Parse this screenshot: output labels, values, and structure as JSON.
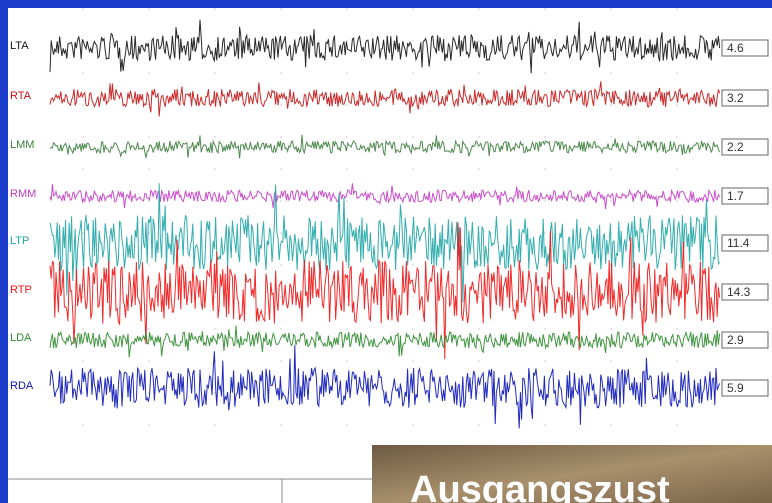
{
  "channels": [
    {
      "label": "LTA",
      "value": "4.6",
      "color": "#111111"
    },
    {
      "label": "RTA",
      "value": "3.2",
      "color": "#c41414"
    },
    {
      "label": "LMM",
      "value": "2.2",
      "color": "#3c7d3c"
    },
    {
      "label": "RMM",
      "value": "1.7",
      "color": "#c43cc4"
    },
    {
      "label": "LTP",
      "value": "11.4",
      "color": "#1ea5a5"
    },
    {
      "label": "RTP",
      "value": "14.3",
      "color": "#f01414"
    },
    {
      "label": "LDA",
      "value": "2.9",
      "color": "#2d8a2d"
    },
    {
      "label": "RDA",
      "value": "5.9",
      "color": "#0a14b4"
    }
  ],
  "caption": "Ausgangszust"
}
